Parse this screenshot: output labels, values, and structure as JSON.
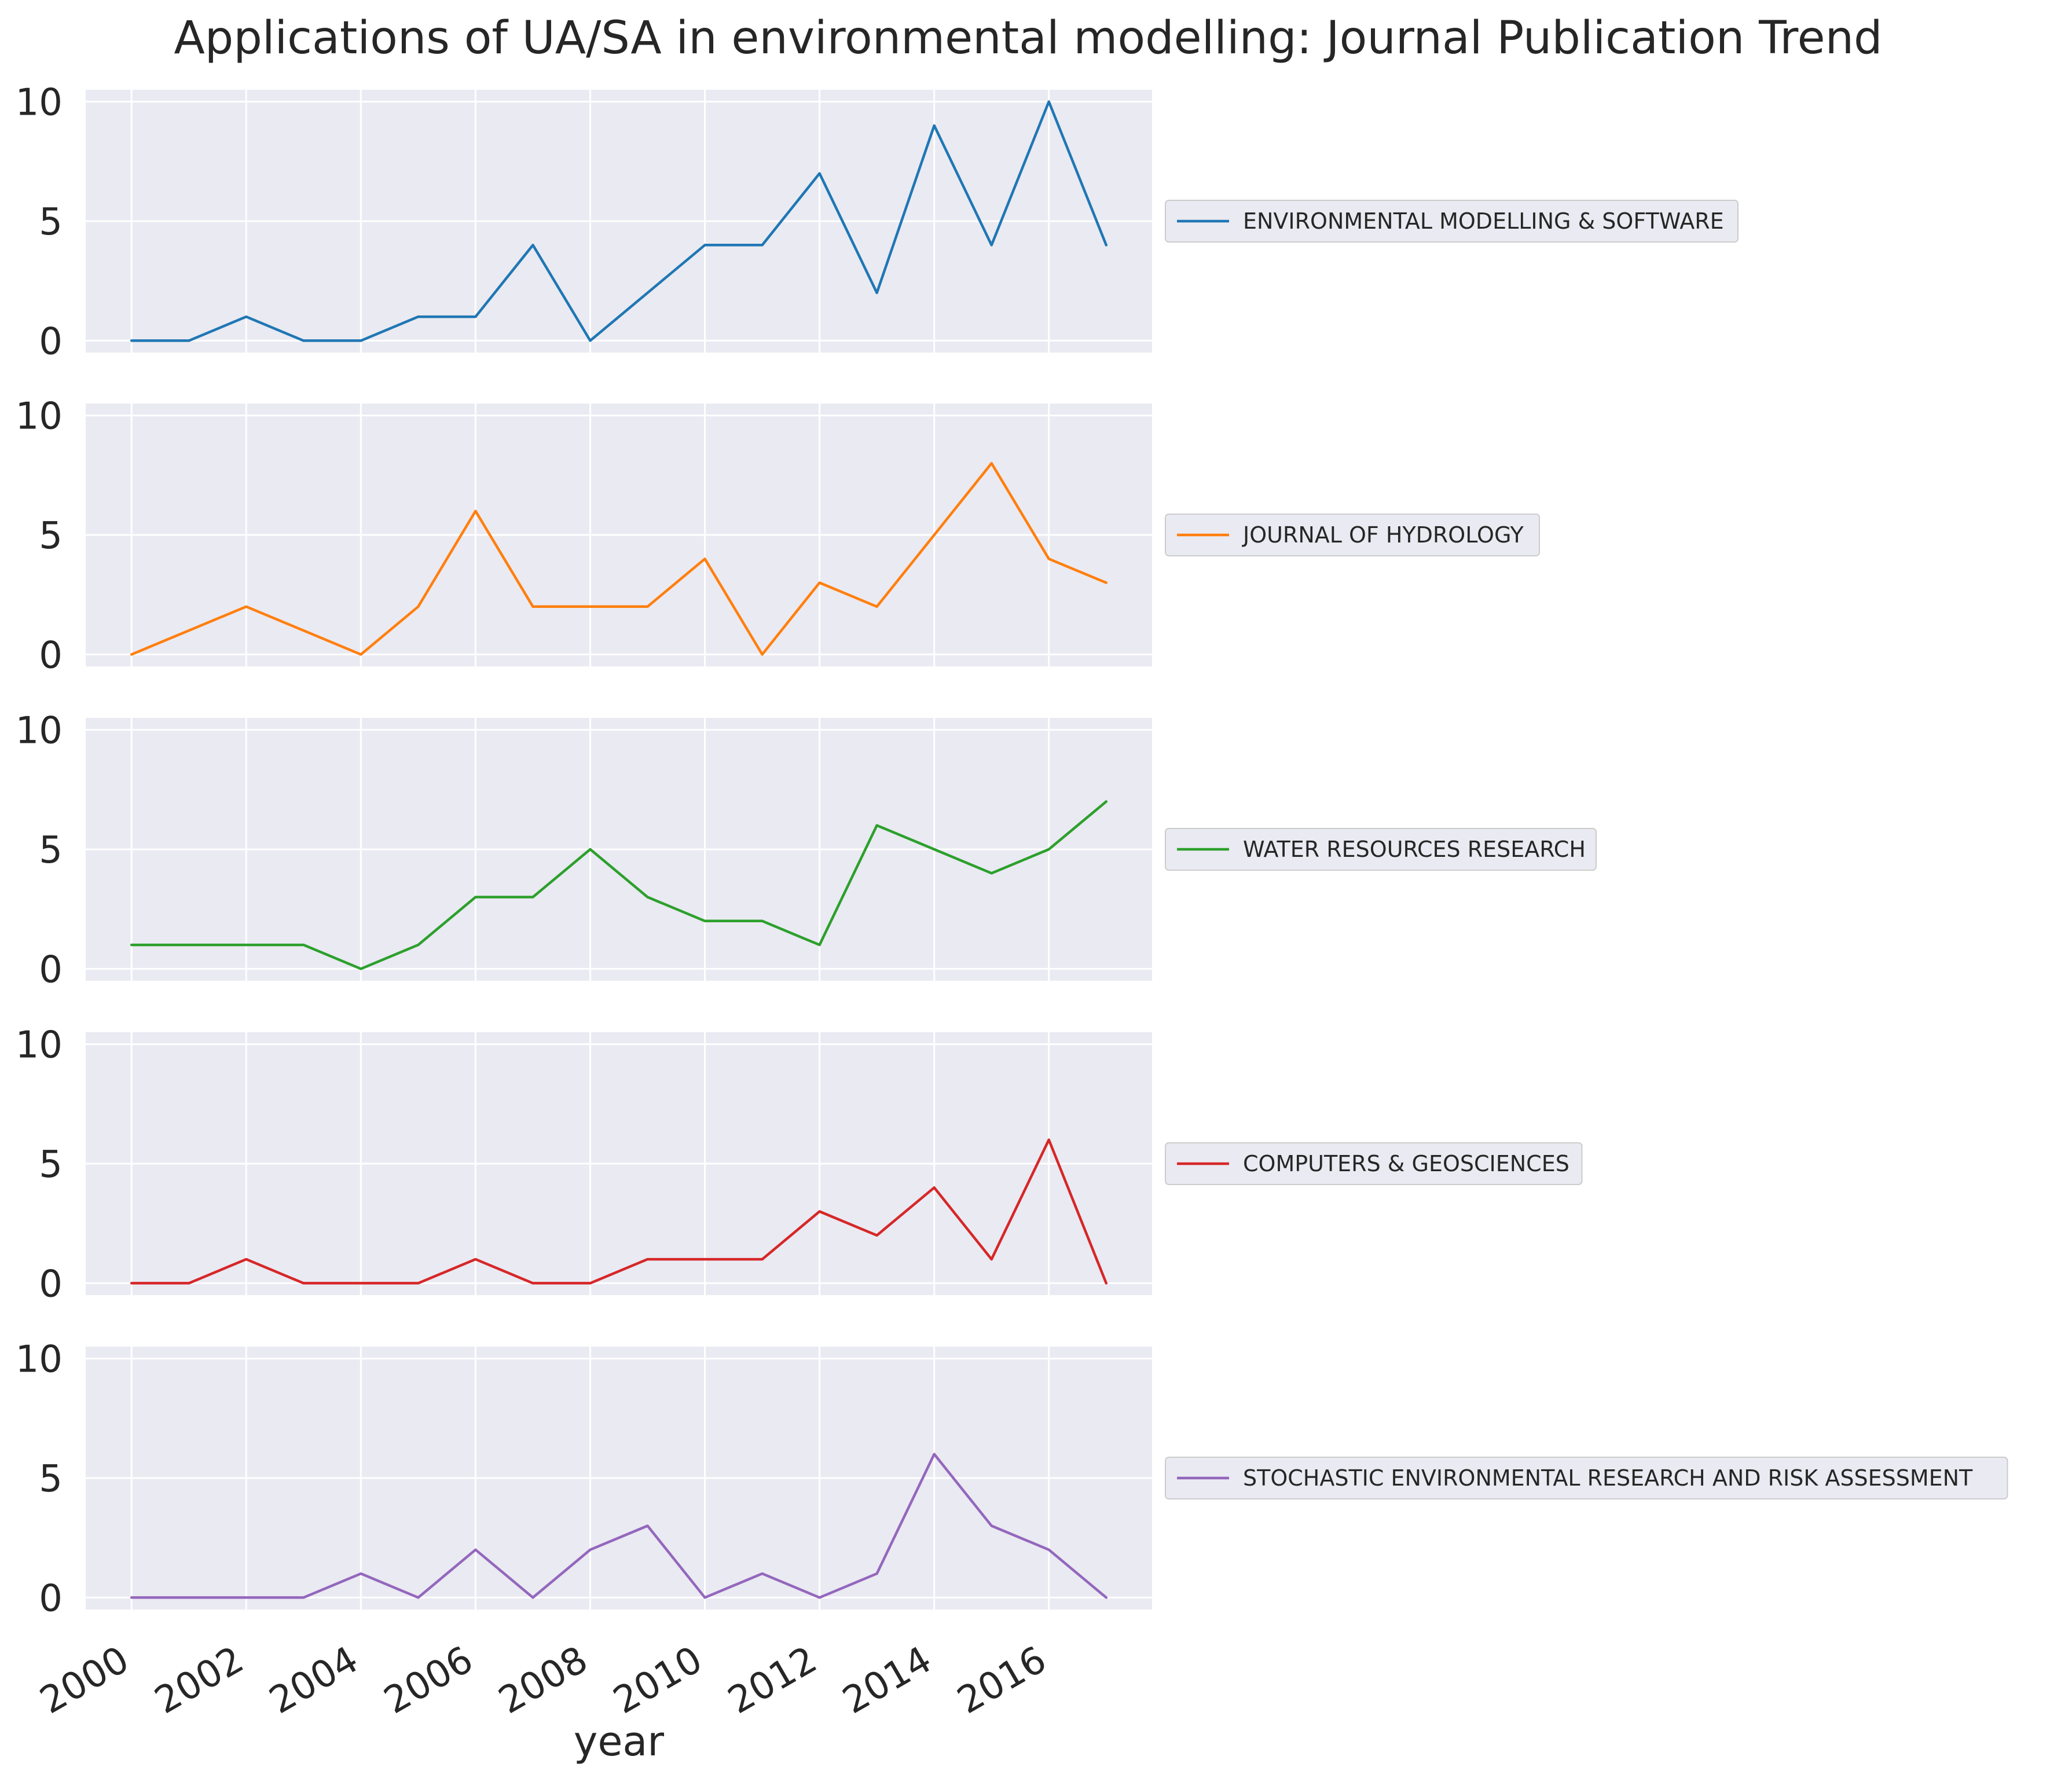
{
  "chart_data": {
    "type": "line",
    "title": "Applications of UA/SA in environmental modelling: Journal Publication Trend",
    "xlabel": "year",
    "ylabel": "",
    "x": [
      2000,
      2001,
      2002,
      2003,
      2004,
      2005,
      2006,
      2007,
      2008,
      2009,
      2010,
      2011,
      2012,
      2013,
      2014,
      2015,
      2016,
      2017
    ],
    "xlim": [
      1999.2,
      2017.8
    ],
    "ylim": [
      -0.5,
      10.5
    ],
    "x_ticks": [
      2000,
      2002,
      2004,
      2006,
      2008,
      2010,
      2012,
      2014,
      2016
    ],
    "x_tick_labels": [
      "2000",
      "2002",
      "2004",
      "2006",
      "2008",
      "2010",
      "2012",
      "2014",
      "2016"
    ],
    "y_ticks": [
      0,
      5,
      10
    ],
    "y_tick_labels": [
      "0",
      "5",
      "10"
    ],
    "grid": true,
    "sharex": true,
    "legend_placement": "right of each panel",
    "series": [
      {
        "name": "ENVIRONMENTAL MODELLING & SOFTWARE",
        "color": "#1f77b4",
        "values": [
          0,
          0,
          1,
          0,
          0,
          1,
          1,
          4,
          0,
          2,
          4,
          4,
          7,
          2,
          9,
          4,
          10,
          4
        ]
      },
      {
        "name": "JOURNAL OF HYDROLOGY",
        "color": "#ff7f0e",
        "values": [
          0,
          1,
          2,
          1,
          0,
          2,
          6,
          2,
          2,
          2,
          4,
          0,
          3,
          2,
          5,
          8,
          4,
          3
        ]
      },
      {
        "name": "WATER RESOURCES RESEARCH",
        "color": "#2ca02c",
        "values": [
          1,
          1,
          1,
          1,
          0,
          1,
          3,
          3,
          5,
          3,
          2,
          2,
          1,
          6,
          5,
          4,
          5,
          7
        ]
      },
      {
        "name": "COMPUTERS & GEOSCIENCES",
        "color": "#d62728",
        "values": [
          0,
          0,
          1,
          0,
          0,
          0,
          1,
          0,
          0,
          1,
          1,
          1,
          3,
          2,
          4,
          1,
          6,
          0
        ]
      },
      {
        "name": "STOCHASTIC ENVIRONMENTAL RESEARCH AND RISK ASSESSMENT",
        "color": "#9467bd",
        "values": [
          0,
          0,
          0,
          0,
          1,
          0,
          2,
          0,
          2,
          3,
          0,
          1,
          0,
          1,
          6,
          3,
          2,
          0
        ]
      }
    ]
  }
}
